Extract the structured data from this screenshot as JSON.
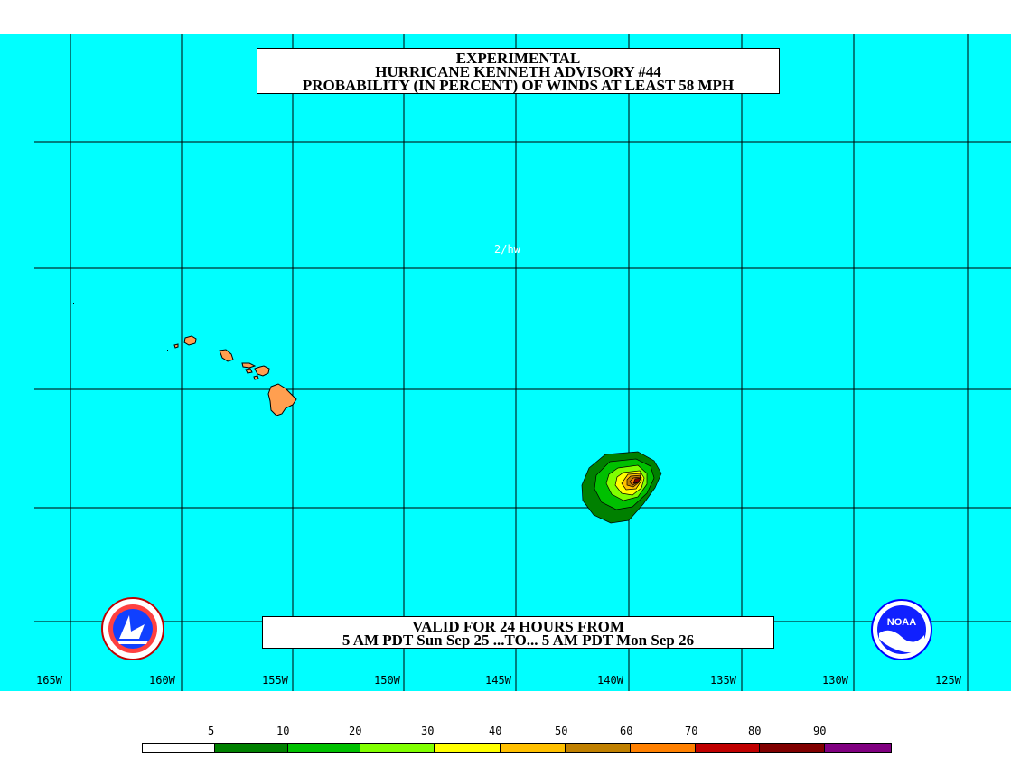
{
  "title": {
    "line1": "EXPERIMENTAL",
    "line2": "HURRICANE KENNETH ADVISORY #44",
    "line3": "PROBABILITY (IN PERCENT) OF WINDS AT LEAST 58 MPH"
  },
  "valid": {
    "line1": "VALID FOR 24 HOURS FROM",
    "line2": "5 AM PDT Sun Sep 25 ...TO... 5 AM PDT Mon Sep 26"
  },
  "credit": "2/hw",
  "longitude_labels": [
    "165W",
    "160W",
    "155W",
    "150W",
    "145W",
    "140W",
    "135W",
    "130W",
    "125W"
  ],
  "legend": {
    "labels": [
      "5",
      "10",
      "20",
      "30",
      "40",
      "50",
      "60",
      "70",
      "80",
      "90"
    ],
    "colors": [
      "#ffffff",
      "#008000",
      "#00c000",
      "#80ff00",
      "#ffff00",
      "#ffc000",
      "#c08000",
      "#ff8000",
      "#c00000",
      "#800000",
      "#800080"
    ]
  },
  "colors": {
    "ocean": "#00ffff",
    "land": "#ff9f50",
    "grid": "#000000"
  },
  "logos": {
    "left": "nws-logo",
    "right": "noaa-logo",
    "noaa_text": "NOAA"
  }
}
